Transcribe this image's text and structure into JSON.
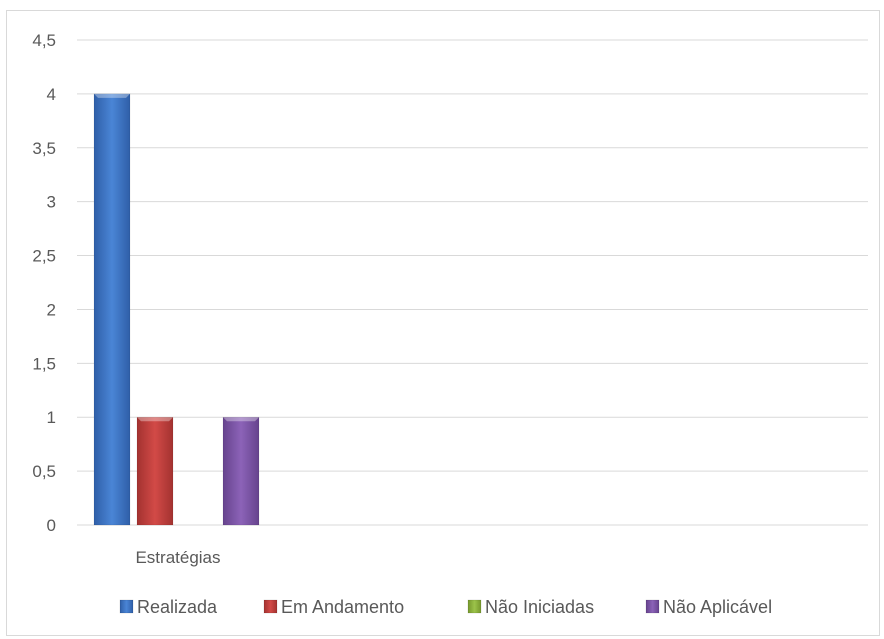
{
  "chart_data": {
    "type": "bar",
    "categories": [
      "Estratégias"
    ],
    "series": [
      {
        "name": "Realizada",
        "values": [
          4
        ],
        "color": "#3f76c8"
      },
      {
        "name": "Em Andamento",
        "values": [
          1
        ],
        "color": "#c0413f"
      },
      {
        "name": "Não Iniciadas",
        "values": [
          0
        ],
        "color": "#8fb43e"
      },
      {
        "name": "Não Aplicável",
        "values": [
          1
        ],
        "color": "#7e57a8"
      }
    ],
    "y_ticks": [
      "0",
      "0,5",
      "1",
      "1,5",
      "2",
      "2,5",
      "3",
      "3,5",
      "4",
      "4,5"
    ],
    "ylim": [
      0,
      4.5
    ],
    "grid": true,
    "legend_position": "bottom",
    "title": "",
    "xlabel": "",
    "ylabel": ""
  }
}
